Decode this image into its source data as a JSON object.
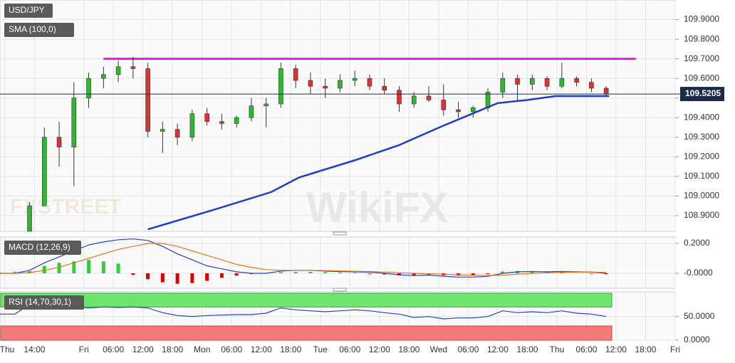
{
  "chart_data": [
    {
      "type": "candlestick",
      "title": "USD/JPY",
      "indicator": "SMA (100,0)",
      "watermarks": [
        "FXSTREET",
        "WikiFX"
      ],
      "xlim": [
        7,
        144
      ],
      "xticks": [
        {
          "value": 8,
          "label": "Thu"
        },
        {
          "value": 14,
          "label": "14:00"
        },
        {
          "value": 24,
          "label": "Fri"
        },
        {
          "value": 30,
          "label": "06:00"
        },
        {
          "value": 36,
          "label": "12:00"
        },
        {
          "value": 42,
          "label": "18:00"
        },
        {
          "value": 48,
          "label": "Mon"
        },
        {
          "value": 54,
          "label": "06:00"
        },
        {
          "value": 60,
          "label": "12:00"
        },
        {
          "value": 66,
          "label": "18:00"
        },
        {
          "value": 72,
          "label": "Tue"
        },
        {
          "value": 78,
          "label": "06:00"
        },
        {
          "value": 84,
          "label": "12:00"
        },
        {
          "value": 90,
          "label": "18:00"
        },
        {
          "value": 96,
          "label": "Wed"
        },
        {
          "value": 102,
          "label": "06:00"
        },
        {
          "value": 108,
          "label": "12:00"
        },
        {
          "value": 114,
          "label": "18:00"
        },
        {
          "value": 120,
          "label": "Thu"
        },
        {
          "value": 126,
          "label": "06:00"
        },
        {
          "value": 132,
          "label": "12:00"
        },
        {
          "value": 138,
          "label": "18:00"
        },
        {
          "value": 144,
          "label": "Fri"
        }
      ],
      "ylim": [
        108.82,
        110.0
      ],
      "yticks": [
        {
          "value": 108.9,
          "label": "108.9000"
        },
        {
          "value": 109.0,
          "label": "109.0000"
        },
        {
          "value": 109.1,
          "label": "109.1000"
        },
        {
          "value": 109.2,
          "label": "109.2000"
        },
        {
          "value": 109.3,
          "label": "109.3000"
        },
        {
          "value": 109.4,
          "label": "109.4000"
        },
        {
          "value": 109.5,
          "label": "109.5000"
        },
        {
          "value": 109.6,
          "label": "109.6000"
        },
        {
          "value": 109.7,
          "label": "109.7000"
        },
        {
          "value": 109.8,
          "label": "109.8000"
        },
        {
          "value": 109.9,
          "label": "109.9000"
        }
      ],
      "up_color": "#2eb82e",
      "down_color": "#e03030",
      "x": [
        13,
        16,
        19,
        22,
        25,
        28,
        31,
        34,
        37,
        40,
        43,
        46,
        49,
        52,
        55,
        58,
        61,
        64,
        67,
        70,
        73,
        76,
        79,
        82,
        85,
        88,
        91,
        94,
        97,
        100,
        103,
        106,
        109,
        112,
        115,
        118,
        121,
        124,
        127,
        130
      ],
      "open": [
        108.82,
        108.95,
        109.3,
        109.25,
        109.5,
        109.6,
        109.62,
        109.66,
        109.65,
        109.33,
        109.34,
        109.3,
        109.42,
        109.38,
        109.37,
        109.4,
        109.46,
        109.47,
        109.65,
        109.59,
        109.56,
        109.55,
        109.59,
        109.6,
        109.56,
        109.54,
        109.47,
        109.51,
        109.49,
        109.44,
        109.43,
        109.45,
        109.53,
        109.6,
        109.57,
        109.6,
        109.56,
        109.6,
        109.58,
        109.55
      ],
      "high": [
        108.97,
        109.35,
        109.38,
        109.58,
        109.63,
        109.66,
        109.69,
        109.71,
        109.68,
        109.38,
        109.37,
        109.44,
        109.45,
        109.42,
        109.41,
        109.5,
        109.5,
        109.68,
        109.67,
        109.63,
        109.6,
        109.62,
        109.64,
        109.62,
        109.6,
        109.56,
        109.53,
        109.56,
        109.57,
        109.48,
        109.46,
        109.55,
        109.63,
        109.62,
        109.62,
        109.61,
        109.68,
        109.61,
        109.6,
        109.56
      ],
      "low": [
        108.82,
        108.95,
        109.15,
        109.05,
        109.45,
        109.55,
        109.58,
        109.6,
        109.3,
        109.22,
        109.26,
        109.28,
        109.36,
        109.34,
        109.35,
        109.38,
        109.35,
        109.45,
        109.55,
        109.52,
        109.5,
        109.53,
        109.56,
        109.54,
        109.52,
        109.43,
        109.45,
        109.48,
        109.41,
        109.4,
        109.4,
        109.43,
        109.5,
        109.48,
        109.54,
        109.54,
        109.55,
        109.56,
        109.53,
        109.51
      ],
      "close": [
        108.95,
        109.3,
        109.25,
        109.5,
        109.6,
        109.62,
        109.66,
        109.65,
        109.33,
        109.34,
        109.3,
        109.42,
        109.38,
        109.37,
        109.4,
        109.46,
        109.47,
        109.65,
        109.59,
        109.56,
        109.55,
        109.59,
        109.6,
        109.56,
        109.54,
        109.47,
        109.51,
        109.49,
        109.44,
        109.43,
        109.45,
        109.53,
        109.6,
        109.57,
        109.6,
        109.56,
        109.6,
        109.58,
        109.55,
        109.52
      ],
      "sma": {
        "color": "#1a3fc7",
        "x": [
          37,
          50.4,
          62,
          67.7,
          79.3,
          88,
          96.6,
          108,
          114,
          119.7,
          130.6
        ],
        "y": [
          108.83,
          108.93,
          109.02,
          109.095,
          109.185,
          109.26,
          109.355,
          109.474,
          109.49,
          109.51,
          109.51
        ]
      },
      "resistance": {
        "value": 109.7,
        "from": 28,
        "to": 136,
        "color": "#e020d0"
      },
      "last_price": 109.5205
    },
    {
      "type": "macd",
      "title": "MACD (12,26,9)",
      "ylim": [
        -0.1,
        0.243
      ],
      "yticks": [
        {
          "value": 0.2,
          "label": "0.2000"
        },
        {
          "value": 0,
          "label": "-0.0000"
        }
      ],
      "up_color": "#33cc33",
      "down_color": "#e00000",
      "x": [
        7,
        10,
        13,
        16,
        19,
        22,
        25,
        28,
        31,
        34,
        37,
        40,
        43,
        46,
        49,
        52,
        55,
        58,
        61,
        64,
        67,
        70,
        73,
        76,
        79,
        82,
        85,
        88,
        91,
        94,
        97,
        100,
        103,
        106,
        109,
        112,
        115,
        118,
        121,
        124,
        127,
        130
      ],
      "series": [
        {
          "name": "MACD",
          "color": "#2244cc",
          "values": [
            0.0,
            0.0,
            0.02,
            0.07,
            0.11,
            0.15,
            0.19,
            0.21,
            0.225,
            0.23,
            0.22,
            0.18,
            0.13,
            0.09,
            0.05,
            0.03,
            0.01,
            0.0,
            0.0,
            0.015,
            0.02,
            0.02,
            0.015,
            0.012,
            0.01,
            0.008,
            0.0,
            -0.01,
            -0.015,
            -0.012,
            -0.02,
            -0.025,
            -0.025,
            -0.02,
            0.0,
            0.01,
            0.012,
            0.01,
            0.012,
            0.01,
            0.008,
            0.0
          ]
        },
        {
          "name": "Signal",
          "color": "#e8731a",
          "values": [
            0.0,
            0.0,
            0.005,
            0.02,
            0.04,
            0.07,
            0.1,
            0.13,
            0.16,
            0.18,
            0.2,
            0.2,
            0.18,
            0.15,
            0.12,
            0.09,
            0.06,
            0.04,
            0.025,
            0.02,
            0.02,
            0.02,
            0.018,
            0.016,
            0.014,
            0.012,
            0.008,
            0.004,
            0.0,
            -0.003,
            -0.006,
            -0.01,
            -0.013,
            -0.015,
            -0.012,
            -0.006,
            0.0,
            0.004,
            0.007,
            0.008,
            0.008,
            0.006
          ]
        }
      ],
      "histogram": [
        0.005,
        0.01,
        0.015,
        0.05,
        0.07,
        0.08,
        0.09,
        0.08,
        0.065,
        -0.01,
        -0.04,
        -0.06,
        -0.07,
        -0.065,
        -0.05,
        -0.03,
        -0.015,
        -0.005,
        0.003,
        0.008,
        0.01,
        0.01,
        0.008,
        0.006,
        0.004,
        -0.004,
        -0.008,
        -0.014,
        -0.015,
        -0.009,
        -0.014,
        -0.015,
        -0.012,
        -0.005,
        0.012,
        0.016,
        0.012,
        0.006,
        0.005,
        0.002,
        -0.003,
        -0.006
      ]
    },
    {
      "type": "rsi",
      "title": "RSI (14,70,30,1)",
      "ylim": [
        0,
        102
      ],
      "yticks": [
        {
          "value": 50,
          "label": "50.0000"
        },
        {
          "value": 0,
          "label": "0.0000"
        }
      ],
      "overbought": 70,
      "oversold": 30,
      "color": "#2244cc",
      "x": [
        7,
        10,
        13,
        16,
        19,
        22,
        25,
        28,
        31,
        34,
        37,
        40,
        43,
        46,
        49,
        52,
        55,
        58,
        61,
        64,
        67,
        70,
        73,
        76,
        79,
        82,
        85,
        88,
        91,
        94,
        97,
        100,
        103,
        106,
        109,
        112,
        115,
        118,
        121,
        124,
        127,
        130
      ],
      "values": [
        55,
        55,
        75,
        72,
        70,
        70,
        68,
        70,
        69,
        70,
        68,
        58,
        52,
        50,
        52,
        53,
        54,
        54,
        57,
        68,
        64,
        62,
        60,
        62,
        64,
        62,
        58,
        55,
        48,
        50,
        45,
        47,
        47,
        50,
        62,
        58,
        60,
        58,
        62,
        57,
        55,
        50
      ]
    }
  ]
}
